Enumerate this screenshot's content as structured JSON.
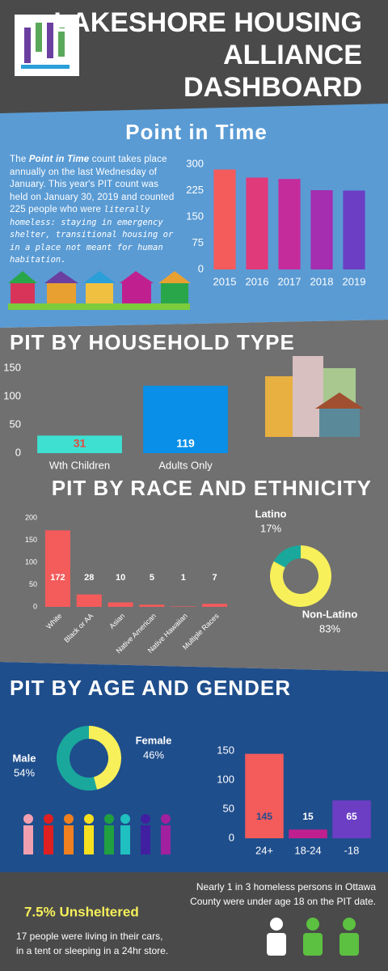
{
  "header": {
    "title_lines": [
      "LAKESHORE HOUSING",
      "ALLIANCE",
      "DASHBOARD"
    ]
  },
  "pit_text": [
    "The ",
    "Point in Time",
    " count takes place annually on the last Wednesday of January.  This year's PIT count was held on January 30, 2019 and counted 225 people who were ",
    "literally homeless: staying in emergency shelter, transitional housing or in a place not meant for human habitation."
  ],
  "chart_data": [
    {
      "type": "bar",
      "title": "Point in Time",
      "categories": [
        "2015",
        "2016",
        "2017",
        "2018",
        "2019"
      ],
      "values": [
        285,
        262,
        258,
        226,
        225
      ],
      "colors": [
        "#f45b5b",
        "#e03a7a",
        "#c42c9c",
        "#a52db0",
        "#6c3ec4"
      ],
      "ylim": [
        0,
        300
      ],
      "yticks": [
        0,
        75,
        150,
        225,
        300
      ]
    },
    {
      "type": "bar",
      "title": "PIT BY HOUSEHOLD TYPE",
      "categories": [
        "Wth Children",
        "Adults Only"
      ],
      "values": [
        31,
        119
      ],
      "colors": [
        "#3ee0d2",
        "#0a8fe8"
      ],
      "label_colors": [
        "#e8473f",
        "#ffffff"
      ],
      "ylim": [
        0,
        150
      ],
      "yticks": [
        0,
        50,
        100,
        150
      ]
    },
    {
      "type": "bar",
      "title": "PIT BY RACE AND ETHNICITY",
      "categories": [
        "White",
        "Black or AA",
        "Asian",
        "Native American",
        "Native Hawaiian",
        "Multiple Races"
      ],
      "values": [
        172,
        28,
        10,
        5,
        1,
        7
      ],
      "colors": [
        "#f45b5b",
        "#f45b5b",
        "#f45b5b",
        "#f45b5b",
        "#f45b5b",
        "#f45b5b"
      ],
      "label_colors": [
        "#ffffff",
        "#ffffff",
        "#ffffff",
        "#ffffff",
        "#ffffff",
        "#ffffff"
      ],
      "ylim": [
        0,
        200
      ],
      "yticks": [
        0,
        50,
        100,
        150,
        200
      ]
    },
    {
      "type": "pie",
      "categories": [
        "Latino",
        "Non-Latino"
      ],
      "values": [
        17,
        83
      ],
      "value_labels": [
        "17%",
        "83%"
      ],
      "colors": [
        "#1aa89c",
        "#f7f05a"
      ]
    },
    {
      "type": "pie",
      "title": "PIT BY AGE AND GENDER",
      "categories": [
        "Male",
        "Female"
      ],
      "values": [
        54,
        46
      ],
      "value_labels": [
        "54%",
        "46%"
      ],
      "colors": [
        "#1aa89c",
        "#f7f05a"
      ]
    },
    {
      "type": "bar",
      "categories": [
        "24+",
        "18-24",
        "-18"
      ],
      "values": [
        145,
        15,
        65
      ],
      "colors": [
        "#f45b5b",
        "#c0208f",
        "#6c3ec4"
      ],
      "label_colors": [
        "#1f4e8c",
        "#ffffff",
        "#ffffff"
      ],
      "ylim": [
        0,
        150
      ],
      "yticks": [
        0,
        50,
        100,
        150
      ]
    }
  ],
  "footer": {
    "note_lines": [
      "Nearly 1 in 3 homeless persons in Ottawa",
      "County were under age 18 on the PIT date."
    ],
    "highlight": "7.5% Unsheltered",
    "detail_lines": [
      "17 people were living in their cars,",
      "in a tent or sleeping in a 24hr store."
    ]
  }
}
